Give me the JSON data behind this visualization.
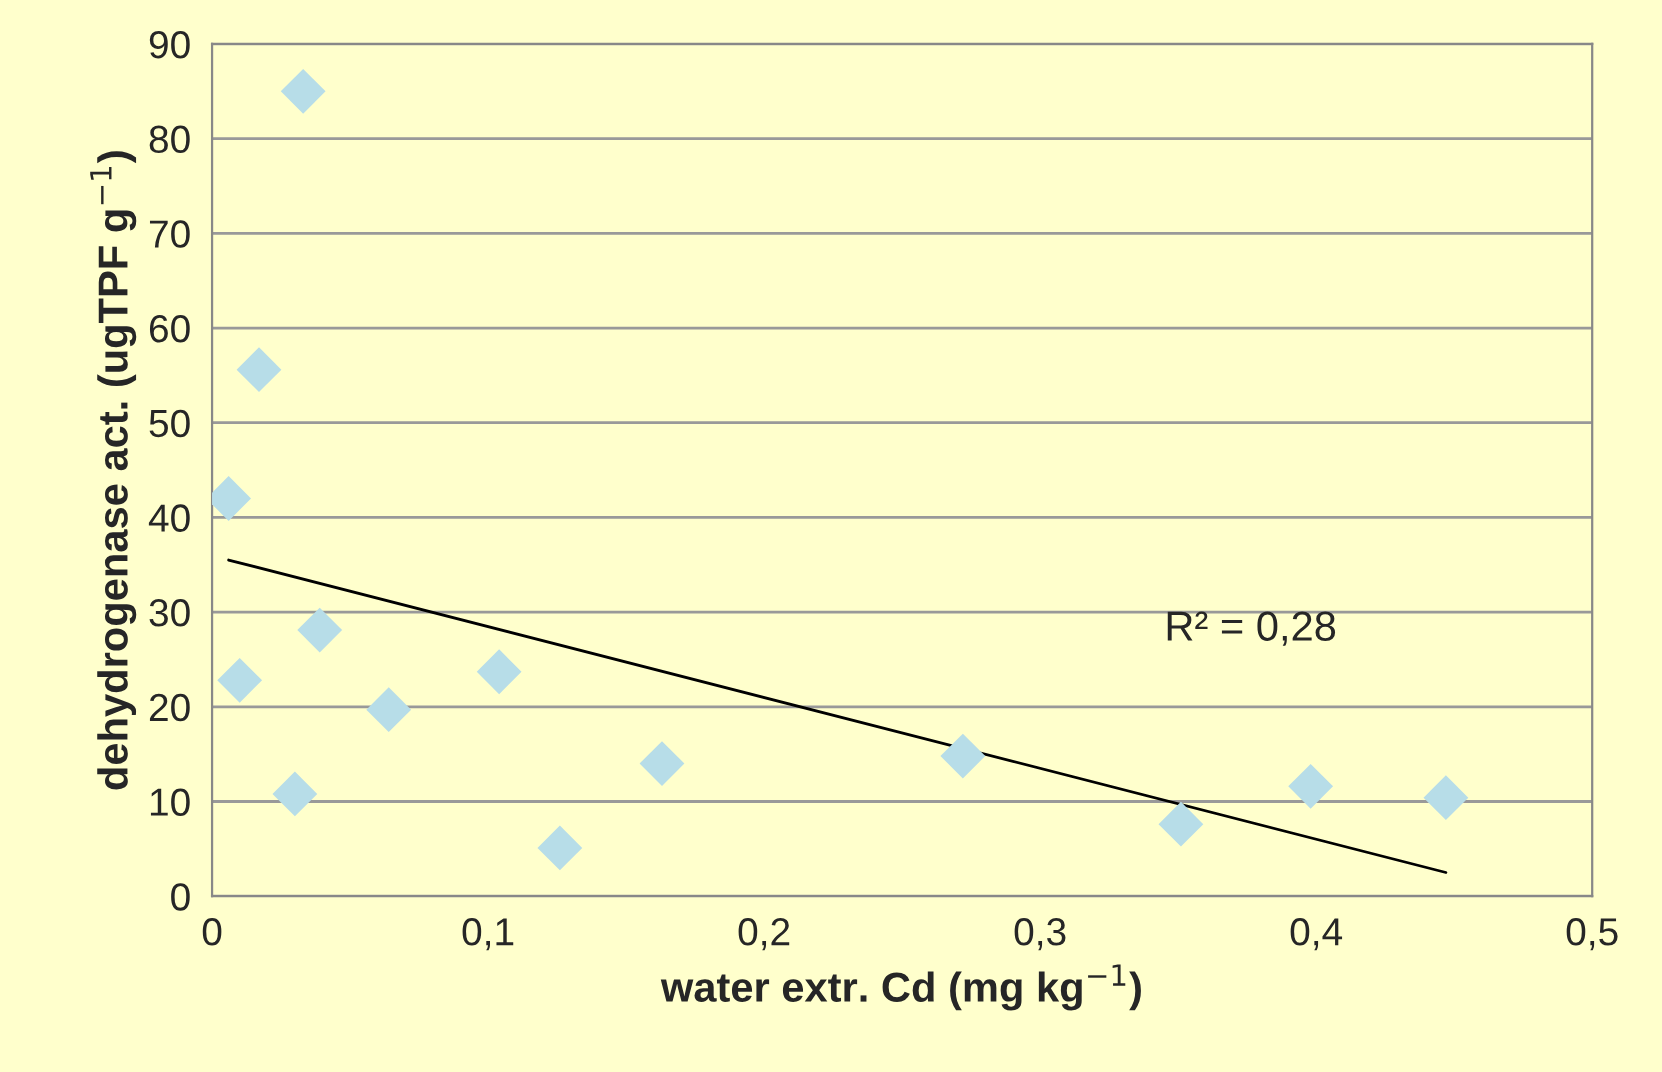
{
  "chart_data": {
    "type": "scatter",
    "xlabel": "water extr. Cd (mg kg$^{−1}$)",
    "ylabel": "dehydrogenase act. (ugTPF g$^{−1}$)",
    "series": [
      {
        "color": "#b7dde8",
        "marker": "diamond",
        "x": [
          0.006,
          0.033,
          0.017,
          0.01,
          0.039,
          0.03,
          0.064,
          0.104,
          0.126,
          0.163,
          0.272,
          0.351,
          0.398,
          0.447
        ],
        "values": [
          42,
          85,
          55.6,
          22.8,
          28.1,
          10.8,
          19.7,
          23.7,
          5.1,
          14,
          14.8,
          7.6,
          11.6,
          10.4
        ]
      },
      {
        "type": "line",
        "color": "#000000",
        "marker": "none",
        "x": [
          0.006,
          0.447
        ],
        "values": [
          35.5,
          2.5
        ]
      }
    ],
    "annotations": [
      "R² = 0,28"
    ],
    "xlim": [
      0,
      0.5
    ],
    "xticks": [
      {
        "value": 0,
        "label": "0"
      },
      {
        "value": 0.1,
        "label": "0,1"
      },
      {
        "value": 0.2,
        "label": "0,2"
      },
      {
        "value": 0.3,
        "label": "0,3"
      },
      {
        "value": 0.4,
        "label": "0,4"
      },
      {
        "value": 0.5,
        "label": "0,5"
      }
    ],
    "ylim": [
      0,
      90
    ],
    "yticks": [
      0,
      10,
      20,
      30,
      40,
      50,
      60,
      70,
      80,
      90
    ],
    "grid": "y",
    "legend": false
  }
}
